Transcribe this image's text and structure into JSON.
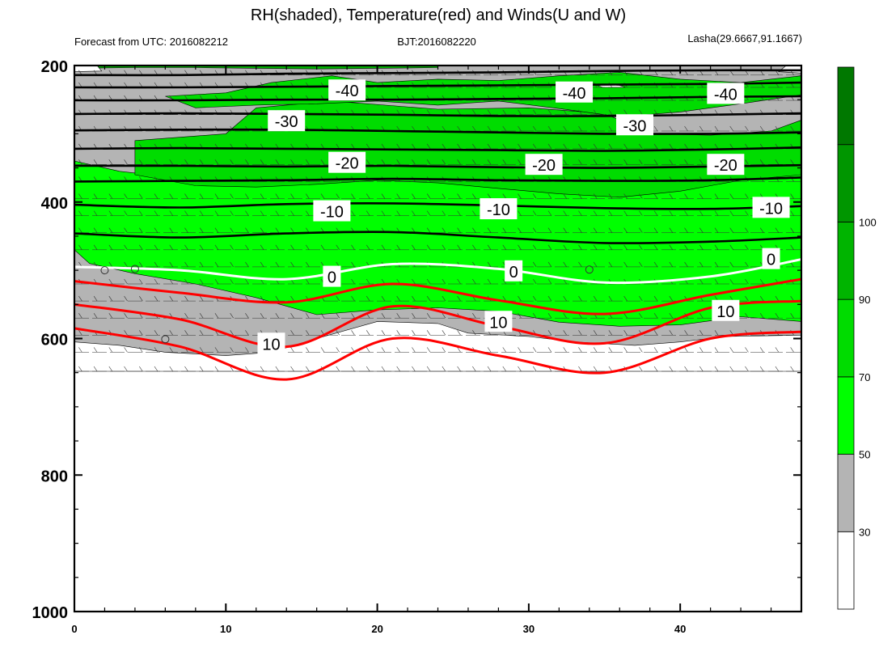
{
  "chart_data": {
    "type": "contour",
    "title": "RH(shaded), Temperature(red) and Winds(U and W)",
    "subtitle_left": "Forecast from UTC: 2016082212",
    "subtitle_center": "BJT:2016082220",
    "subtitle_right": "Lasha(29.6667,91.1667)",
    "x_range": [
      0,
      48
    ],
    "y_range": [
      200,
      1000
    ],
    "y_reversed": true,
    "x_ticks": [
      0,
      10,
      20,
      30,
      40
    ],
    "y_ticks": [
      200,
      400,
      600,
      800,
      1000
    ],
    "rh_colorbar": {
      "levels": [
        "30",
        "50",
        "70",
        "90",
        "100"
      ],
      "colors": [
        "#ffffff",
        "#b4b4b4",
        "#00ff00",
        "#00dc00",
        "#00b400",
        "#009600",
        "#007800"
      ]
    },
    "black_isotherms": [
      {
        "label": "-40",
        "y": [
          214,
          214,
          212,
          211,
          210,
          208,
          207,
          207
        ]
      },
      {
        "label": "-40",
        "y": [
          232,
          232,
          231,
          230,
          229,
          228,
          227,
          225
        ]
      },
      {
        "label": "-40",
        "y": [
          251,
          251,
          250,
          250,
          249,
          248,
          246,
          245
        ]
      },
      {
        "label": "-30",
        "y": [
          271,
          270,
          271,
          272,
          274,
          274,
          272,
          270
        ]
      },
      {
        "label": "-30",
        "y": [
          295,
          294,
          294,
          296,
          298,
          300,
          300,
          298
        ]
      },
      {
        "label": "-20",
        "y": [
          322,
          321,
          322,
          323,
          324,
          325,
          323,
          320
        ]
      },
      {
        "label": "-20",
        "y": [
          347,
          347,
          348,
          347,
          349,
          350,
          348,
          346
        ]
      },
      {
        "label": "-20",
        "y": [
          370,
          369,
          368,
          366,
          368,
          369,
          368,
          364
        ]
      },
      {
        "label": "-10",
        "y": [
          404,
          408,
          403,
          402,
          405,
          409,
          410,
          406
        ]
      },
      {
        "label": "-10",
        "y": [
          446,
          452,
          446,
          444,
          452,
          460,
          458,
          452
        ]
      }
    ],
    "zero_isotherm": {
      "label": "0",
      "y": [
        495,
        500,
        513,
        491,
        498,
        518,
        509,
        484
      ]
    },
    "red_isotherms": [
      {
        "label": "10",
        "y": [
          516,
          533,
          547,
          520,
          544,
          564,
          536,
          513
        ]
      },
      {
        "label": "10",
        "y": [
          550,
          572,
          612,
          553,
          582,
          607,
          555,
          545
        ]
      },
      {
        "label": "10",
        "y": [
          585,
          612,
          660,
          600,
          625,
          650,
          600,
          590
        ]
      }
    ],
    "contour_labels": [
      {
        "text": "-40",
        "x": 18,
        "y": 237
      },
      {
        "text": "-40",
        "x": 33,
        "y": 240
      },
      {
        "text": "-40",
        "x": 43,
        "y": 242
      },
      {
        "text": "-30",
        "x": 14,
        "y": 282
      },
      {
        "text": "-30",
        "x": 37,
        "y": 288
      },
      {
        "text": "-20",
        "x": 18,
        "y": 343
      },
      {
        "text": "-20",
        "x": 31,
        "y": 346
      },
      {
        "text": "-20",
        "x": 43,
        "y": 346
      },
      {
        "text": "-10",
        "x": 17,
        "y": 414
      },
      {
        "text": "-10",
        "x": 28,
        "y": 411
      },
      {
        "text": "-10",
        "x": 46,
        "y": 409
      },
      {
        "text": "0",
        "x": 17,
        "y": 510
      },
      {
        "text": "0",
        "x": 29,
        "y": 502
      },
      {
        "text": "0",
        "x": 46,
        "y": 484
      },
      {
        "text": "10",
        "x": 13,
        "y": 608
      },
      {
        "text": "10",
        "x": 28,
        "y": 576
      },
      {
        "text": "10",
        "x": 43,
        "y": 560
      }
    ],
    "calm_wind_markers": [
      {
        "x": 2,
        "y": 500
      },
      {
        "x": 4,
        "y": 498
      },
      {
        "x": 6,
        "y": 601
      },
      {
        "x": 34,
        "y": 499
      }
    ]
  },
  "colors": {
    "isotherm_black": "#000000",
    "isotherm_zero": "#ffffff",
    "isotherm_red": "#ff0000",
    "wind_barb": "#333333"
  }
}
